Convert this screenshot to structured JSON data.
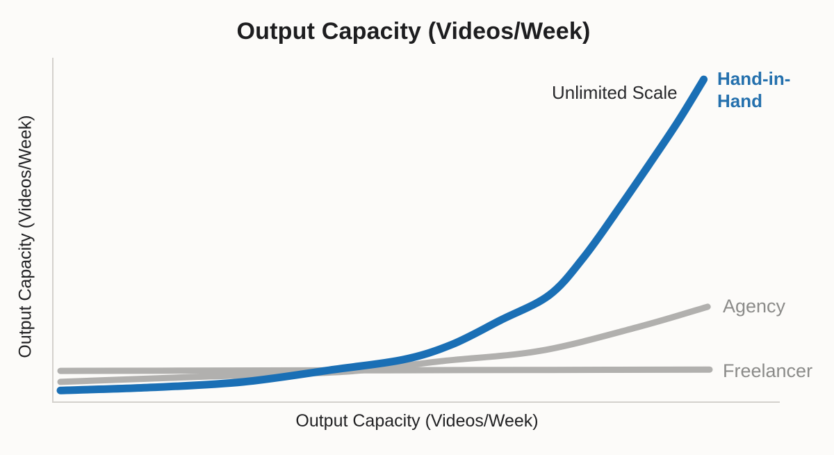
{
  "page": {
    "background_color": "#fcfbf9",
    "title_color": "#1d1d1f",
    "axis_line_color": "#d4d1cd"
  },
  "chart_data": {
    "type": "line",
    "title": "Output Capacity (Videos/Week)",
    "xlabel": "Output Capacity (Videos/Week)",
    "ylabel": "Output Capacity (Videos/Week)",
    "x_range": [
      0,
      100
    ],
    "y_range": [
      0,
      100
    ],
    "grid": false,
    "tick_labels": "none (qualitative comparison chart)",
    "legend_position": "line-end labels at right",
    "annotations": [
      {
        "text": "Unlimited Scale",
        "color": "#28282b",
        "anchor_series": "Hand-in-Hand",
        "position": "left of Hand-in-Hand curve tip"
      }
    ],
    "series": [
      {
        "name": "Freelancer",
        "label": "Freelancer",
        "color": "#b1b0ae",
        "label_color": "#8b8b89",
        "stroke_width": 9,
        "shape": "flat",
        "points": [
          [
            0,
            9.1
          ],
          [
            25,
            9.2
          ],
          [
            50,
            9.3
          ],
          [
            75,
            9.4
          ],
          [
            100,
            9.5
          ]
        ]
      },
      {
        "name": "Agency",
        "label": "Agency",
        "color": "#b1b0ae",
        "label_color": "#8b8b89",
        "stroke_width": 9,
        "shape": "slow growth",
        "points": [
          [
            0,
            5.9
          ],
          [
            23,
            7.5
          ],
          [
            44,
            8.9
          ],
          [
            59,
            12.0
          ],
          [
            74,
            15.0
          ],
          [
            89,
            21.9
          ],
          [
            99.7,
            27.8
          ]
        ]
      },
      {
        "name": "Hand-in-Hand",
        "label": "Hand-in-Hand",
        "color": "#1a6fb5",
        "label_color": "#2470ad",
        "stroke_width": 11,
        "shape": "exponential growth",
        "points": [
          [
            0,
            3.4
          ],
          [
            14.2,
            4.3
          ],
          [
            28.2,
            5.9
          ],
          [
            42.1,
            9.5
          ],
          [
            52.8,
            12.4
          ],
          [
            60.3,
            16.8
          ],
          [
            67.8,
            23.9
          ],
          [
            75.3,
            31.2
          ],
          [
            80.6,
            42.2
          ],
          [
            86.0,
            56.4
          ],
          [
            90.8,
            69.6
          ],
          [
            95.1,
            81.7
          ],
          [
            99.1,
            94.1
          ]
        ]
      }
    ]
  }
}
